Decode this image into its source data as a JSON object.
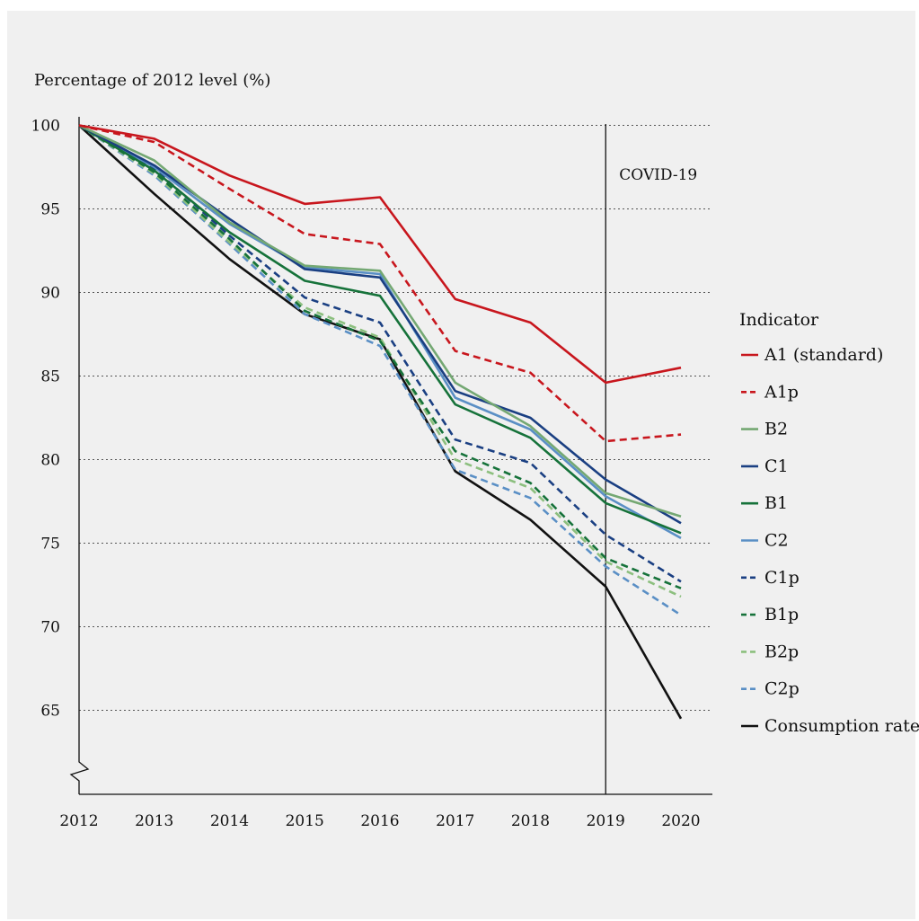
{
  "chart_data": {
    "type": "line",
    "title": "",
    "ylabel": "Percentage of 2012 level (%)",
    "xlabel": "",
    "x": [
      "2012",
      "2013",
      "2014",
      "2015",
      "2016",
      "2017",
      "2018",
      "2019",
      "2020"
    ],
    "ylim": [
      60,
      100
    ],
    "yticks": [
      65,
      70,
      75,
      80,
      85,
      90,
      95,
      100
    ],
    "grid": "horizontal dotted",
    "axis_break": true,
    "annotation": {
      "label": "COVID-19",
      "x": "2019"
    },
    "legend": {
      "title": "Indicator",
      "placement": "right"
    },
    "series": [
      {
        "name": "A1 (standard)",
        "color": "#c8161d",
        "dashed": false,
        "values": [
          100,
          99.2,
          97.0,
          95.3,
          95.7,
          89.6,
          88.2,
          84.6,
          85.5
        ]
      },
      {
        "name": "A1p",
        "color": "#c8161d",
        "dashed": true,
        "values": [
          100,
          99.0,
          96.2,
          93.5,
          92.9,
          86.5,
          85.2,
          81.1,
          81.5
        ]
      },
      {
        "name": "B2",
        "color": "#74a873",
        "dashed": false,
        "values": [
          100,
          97.9,
          94.2,
          91.6,
          91.3,
          84.6,
          82.0,
          78.0,
          76.6
        ]
      },
      {
        "name": "C1",
        "color": "#1a3f82",
        "dashed": false,
        "values": [
          100,
          97.6,
          94.4,
          91.4,
          90.9,
          84.1,
          82.5,
          78.8,
          76.2
        ]
      },
      {
        "name": "B1",
        "color": "#16723a",
        "dashed": false,
        "values": [
          100,
          97.3,
          93.6,
          90.7,
          89.8,
          83.3,
          81.3,
          77.4,
          75.6
        ]
      },
      {
        "name": "C2",
        "color": "#5a8fc5",
        "dashed": false,
        "values": [
          100,
          97.5,
          94.1,
          91.5,
          91.1,
          83.7,
          81.8,
          77.8,
          75.3
        ]
      },
      {
        "name": "C1p",
        "color": "#1a3f82",
        "dashed": true,
        "values": [
          100,
          97.4,
          93.4,
          89.7,
          88.2,
          81.2,
          79.8,
          75.5,
          72.7
        ]
      },
      {
        "name": "B1p",
        "color": "#16723a",
        "dashed": true,
        "values": [
          100,
          97.2,
          93.2,
          88.9,
          87.1,
          80.5,
          78.6,
          74.1,
          72.3
        ]
      },
      {
        "name": "B2p",
        "color": "#8cbf7e",
        "dashed": true,
        "values": [
          100,
          97.1,
          93.0,
          89.1,
          87.3,
          80.0,
          78.3,
          73.9,
          71.8
        ]
      },
      {
        "name": "C2p",
        "color": "#5a8fc5",
        "dashed": true,
        "values": [
          100,
          97.0,
          92.9,
          88.7,
          86.8,
          79.4,
          77.7,
          73.6,
          70.7
        ]
      },
      {
        "name": "Consumption rate",
        "color": "#111111",
        "dashed": false,
        "values": [
          100,
          95.9,
          92.0,
          88.7,
          87.2,
          79.3,
          76.4,
          72.4,
          64.5
        ]
      }
    ]
  }
}
